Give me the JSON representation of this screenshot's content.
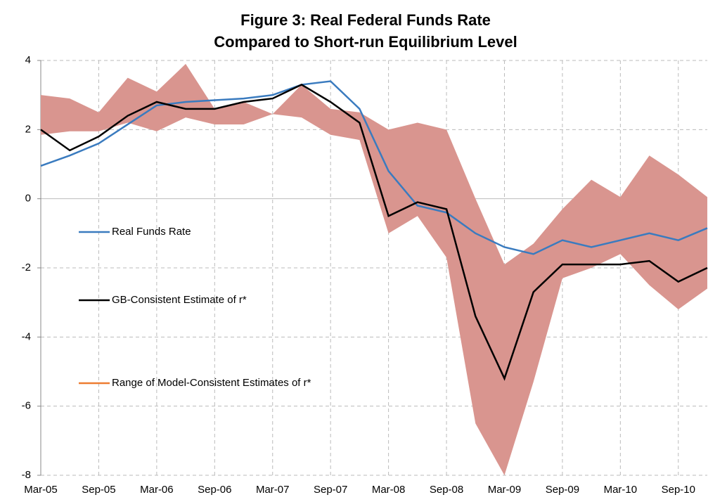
{
  "chart_data": {
    "type": "line",
    "title": [
      "Figure 3:  Real Federal Funds Rate",
      "Compared to Short-run Equilibrium Level"
    ],
    "categories": [
      "Mar-05",
      null,
      "Sep-05",
      null,
      "Mar-06",
      null,
      "Sep-06",
      null,
      "Mar-07",
      null,
      "Sep-07",
      null,
      "Mar-08",
      null,
      "Sep-08",
      null,
      "Mar-09",
      null,
      "Sep-09",
      null,
      "Mar-10",
      null,
      "Sep-10",
      null
    ],
    "series": [
      {
        "name": "Real Funds Rate",
        "color": "#3a7bbf",
        "values": [
          0.95,
          1.25,
          1.6,
          2.15,
          2.7,
          2.8,
          2.85,
          2.9,
          3.0,
          3.3,
          3.4,
          2.6,
          0.8,
          -0.2,
          -0.4,
          -1.0,
          -1.4,
          -1.6,
          -1.2,
          -1.4,
          -1.2,
          -1.0,
          -1.2,
          -0.85
        ]
      },
      {
        "name": "GB-Consistent Estimate of r*",
        "color": "#000000",
        "values": [
          2.0,
          1.4,
          1.8,
          2.4,
          2.8,
          2.6,
          2.6,
          2.8,
          2.9,
          3.3,
          2.8,
          2.2,
          -0.5,
          -0.1,
          -0.3,
          -3.4,
          -5.2,
          -2.7,
          -1.9,
          -1.9,
          -1.9,
          -1.8,
          -2.4,
          -2.0
        ]
      },
      {
        "name": "Range of Model-Consistent Estimates of r*",
        "type": "band",
        "color": "#d9958f",
        "legend_color": "#ed7d31",
        "upper": [
          3.0,
          2.9,
          2.5,
          3.5,
          3.1,
          3.9,
          2.6,
          2.8,
          2.45,
          3.3,
          2.6,
          2.5,
          2.0,
          2.2,
          2.0,
          0.0,
          -1.9,
          -1.3,
          -0.3,
          0.55,
          0.05,
          1.25,
          0.7,
          0.05
        ],
        "lower": [
          1.85,
          1.95,
          1.95,
          2.2,
          1.95,
          2.35,
          2.15,
          2.15,
          2.45,
          2.35,
          1.85,
          1.7,
          -1.0,
          -0.5,
          -1.7,
          -6.5,
          -8.0,
          -5.3,
          -2.3,
          -2.0,
          -1.6,
          -2.5,
          -3.2,
          -2.6
        ]
      }
    ],
    "ylim": [
      -8,
      4
    ],
    "yticks": [
      -8,
      -6,
      -4,
      -2,
      0,
      2,
      4
    ],
    "grid": true,
    "legend": "left"
  }
}
